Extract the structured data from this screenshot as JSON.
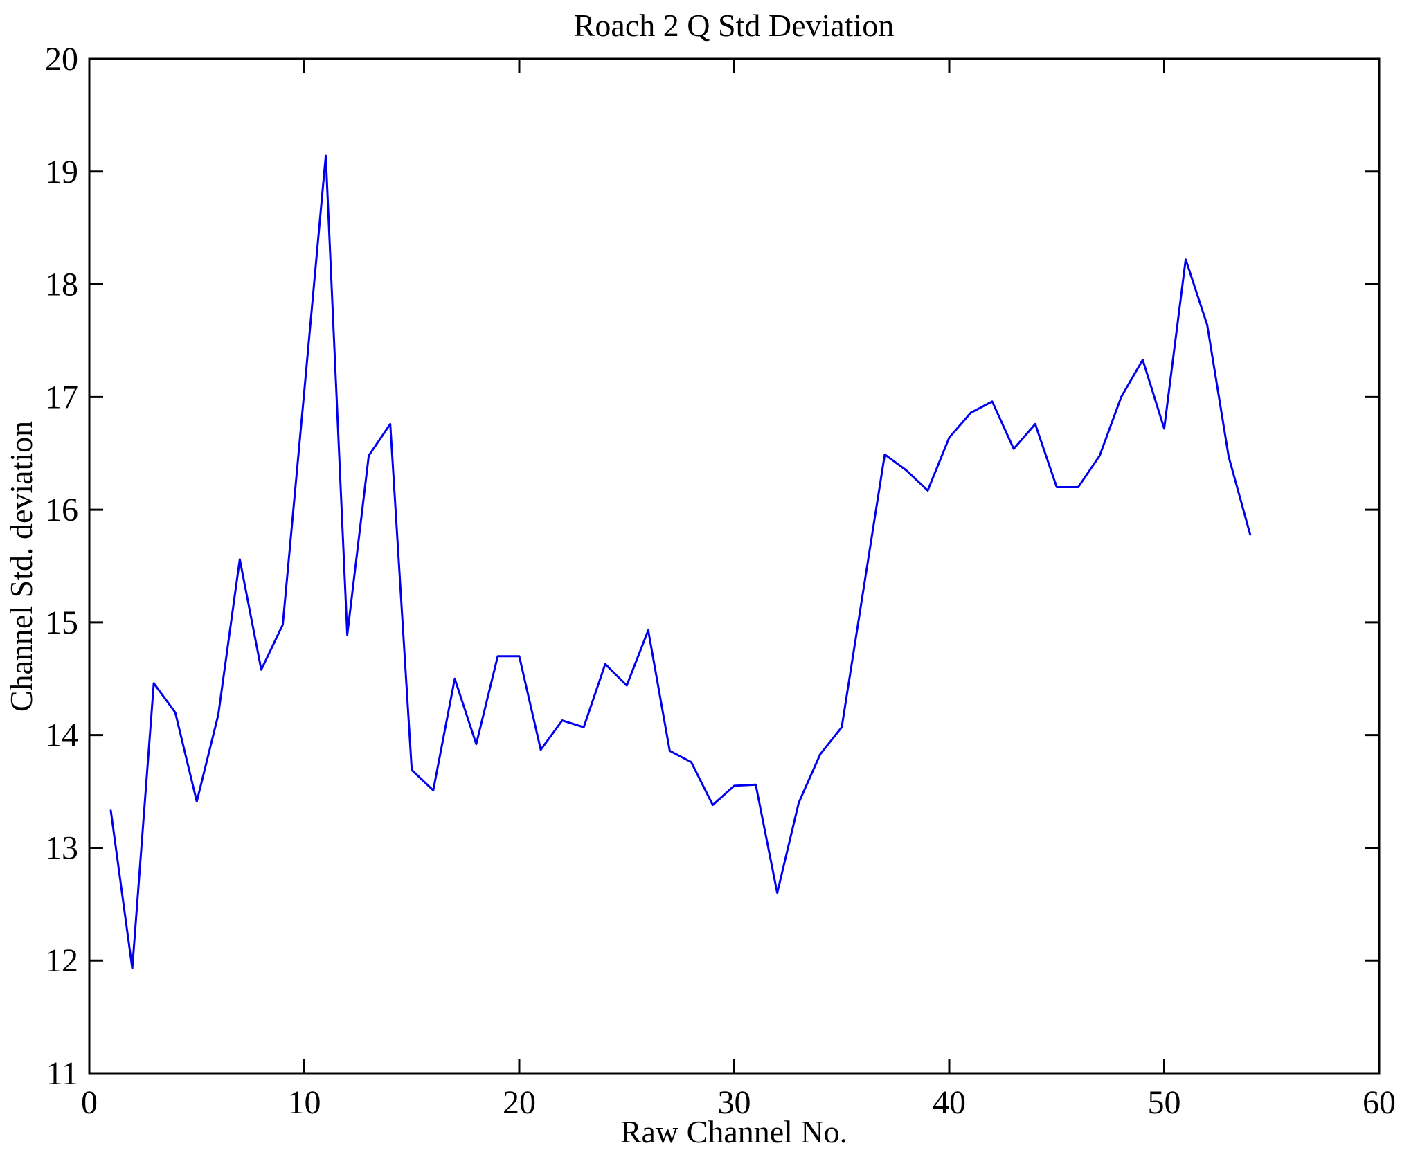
{
  "chart_data": {
    "type": "line",
    "title": "Roach 2 Q Std Deviation",
    "xlabel": "Raw Channel No.",
    "ylabel": "Channel Std. deviation",
    "xlim": [
      0,
      60
    ],
    "ylim": [
      11,
      20
    ],
    "x_ticks": [
      0,
      10,
      20,
      30,
      40,
      50,
      60
    ],
    "y_ticks": [
      11,
      12,
      13,
      14,
      15,
      16,
      17,
      18,
      19,
      20
    ],
    "grid": false,
    "legend_position": "none",
    "line_color": "#0000EE",
    "frame_color": "#000000",
    "background_color": "#ffffff",
    "x": [
      1,
      2,
      3,
      4,
      5,
      6,
      7,
      8,
      9,
      10,
      11,
      12,
      13,
      14,
      15,
      16,
      17,
      18,
      19,
      20,
      21,
      22,
      23,
      24,
      25,
      26,
      27,
      28,
      29,
      30,
      31,
      32,
      33,
      34,
      35,
      36,
      37,
      38,
      39,
      40,
      41,
      42,
      43,
      44,
      45,
      46,
      47,
      48,
      49,
      50,
      51,
      52,
      53,
      54
    ],
    "y": [
      13.33,
      11.93,
      14.46,
      14.2,
      13.41,
      14.18,
      15.56,
      14.58,
      14.98,
      17.05,
      19.14,
      14.89,
      16.48,
      16.76,
      13.69,
      13.51,
      14.5,
      13.92,
      14.7,
      14.7,
      13.87,
      14.13,
      14.07,
      14.63,
      14.44,
      14.93,
      13.86,
      13.76,
      13.38,
      13.55,
      13.56,
      12.6,
      13.4,
      13.83,
      14.07,
      15.28,
      16.49,
      16.35,
      16.17,
      16.64,
      16.86,
      16.96,
      16.54,
      16.76,
      16.2,
      16.2,
      16.48,
      17.0,
      17.33,
      16.72,
      18.22,
      17.64,
      16.47,
      15.78
    ]
  }
}
